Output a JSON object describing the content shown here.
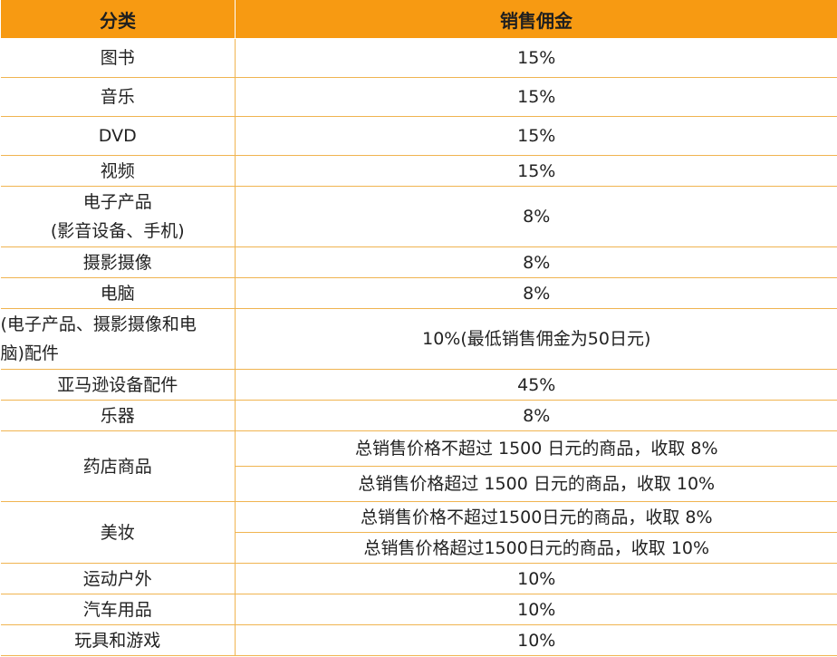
{
  "header": {
    "category": "分类",
    "commission": "销售佣金"
  },
  "rows": {
    "book": {
      "category": "图书",
      "commission": "15%"
    },
    "music": {
      "category": "音乐",
      "commission": "15%"
    },
    "dvd": {
      "category": "DVD",
      "commission": "15%"
    },
    "video": {
      "category": "视频",
      "commission": "15%"
    },
    "electronics": {
      "category_line1": "电子产品",
      "category_line2": "(影音设备、手机)",
      "commission": "8%"
    },
    "camera": {
      "category": "摄影摄像",
      "commission": "8%"
    },
    "computer": {
      "category": "电脑",
      "commission": "8%"
    },
    "accessories": {
      "category_line1": "(电子产品、摄影摄像和电",
      "category_line2": "脑)配件",
      "commission": "10%(最低销售佣金为50日元)"
    },
    "amazon_device": {
      "category": "亚马逊设备配件",
      "commission": "45%"
    },
    "instruments": {
      "category": "乐器",
      "commission": "8%"
    },
    "drugstore": {
      "category": "药店商品",
      "commission_1": "总销售价格不超过 1500 日元的商品，收取 8%",
      "commission_2": "总销售价格超过 1500 日元的商品，收取 10%"
    },
    "beauty": {
      "category": "美妆",
      "commission_1": "总销售价格不超过1500日元的商品，收取 8%",
      "commission_2": "总销售价格超过1500日元的商品，收取 10%"
    },
    "sports": {
      "category": "运动户外",
      "commission": "10%"
    },
    "auto": {
      "category": "汽车用品",
      "commission": "10%"
    },
    "toys": {
      "category": "玩具和游戏",
      "commission": "10%"
    }
  },
  "colors": {
    "header_bg": "#f79a12",
    "border": "#f0b450"
  }
}
